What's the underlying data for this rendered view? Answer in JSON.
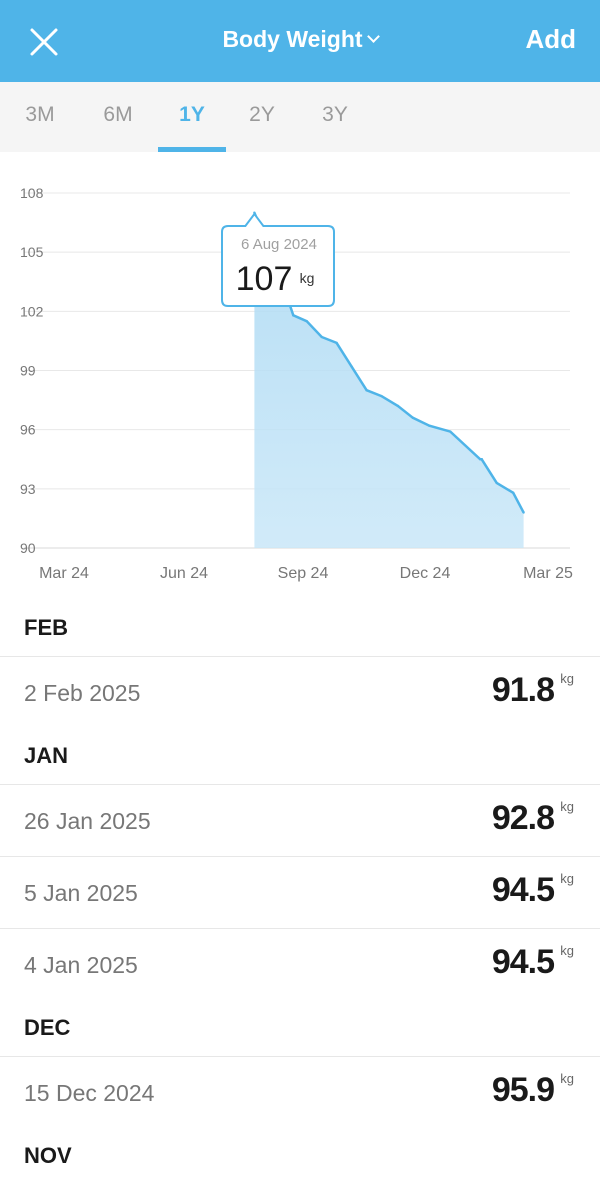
{
  "header": {
    "title": "Body Weight",
    "add_label": "Add",
    "close_icon": "close-icon",
    "chevron_icon": "chevron-down-icon",
    "accent": "#4fb4e8"
  },
  "tabs": [
    {
      "label": "3M",
      "active": false
    },
    {
      "label": "6M",
      "active": false
    },
    {
      "label": "1Y",
      "active": true
    },
    {
      "label": "2Y",
      "active": false
    },
    {
      "label": "3Y",
      "active": false
    }
  ],
  "chart_data": {
    "type": "area",
    "title": "",
    "xlabel": "",
    "ylabel": "",
    "ylim": [
      90,
      108
    ],
    "yticks": [
      "108",
      "105",
      "102",
      "99",
      "96",
      "93",
      "90"
    ],
    "xticks": [
      "Mar 24",
      "Jun 24",
      "Sep 24",
      "Dec 24",
      "Mar 25"
    ],
    "x_range": [
      "2024-03-05",
      "2025-03-05"
    ],
    "grid": true,
    "series": [
      {
        "x": [
          "2024-08-06",
          "2024-08-20",
          "2024-09-01",
          "2024-09-10",
          "2024-09-20",
          "2024-09-30",
          "2024-10-10",
          "2024-10-20",
          "2024-10-30",
          "2024-11-10",
          "2024-11-20",
          "2024-12-01",
          "2024-12-15",
          "2025-01-04",
          "2025-01-05",
          "2025-01-15",
          "2025-01-26",
          "2025-02-02"
        ],
        "y": [
          107,
          104.5,
          101.8,
          101.5,
          100.7,
          100.4,
          99.2,
          98.0,
          97.7,
          97.2,
          96.6,
          96.2,
          95.9,
          94.5,
          94.5,
          93.3,
          92.8,
          91.8
        ]
      }
    ],
    "tooltip": {
      "date": "6 Aug 2024",
      "value": "107",
      "unit": "kg"
    },
    "color": "#4fb4e8"
  },
  "entries": [
    {
      "month": "FEB",
      "items": [
        {
          "date": "2 Feb 2025",
          "value": "91.8",
          "unit": "kg"
        }
      ]
    },
    {
      "month": "JAN",
      "items": [
        {
          "date": "26 Jan 2025",
          "value": "92.8",
          "unit": "kg"
        },
        {
          "date": "5 Jan 2025",
          "value": "94.5",
          "unit": "kg"
        },
        {
          "date": "4 Jan 2025",
          "value": "94.5",
          "unit": "kg"
        }
      ]
    },
    {
      "month": "DEC",
      "items": [
        {
          "date": "15 Dec 2024",
          "value": "95.9",
          "unit": "kg"
        }
      ]
    },
    {
      "month": "NOV",
      "items": []
    }
  ]
}
